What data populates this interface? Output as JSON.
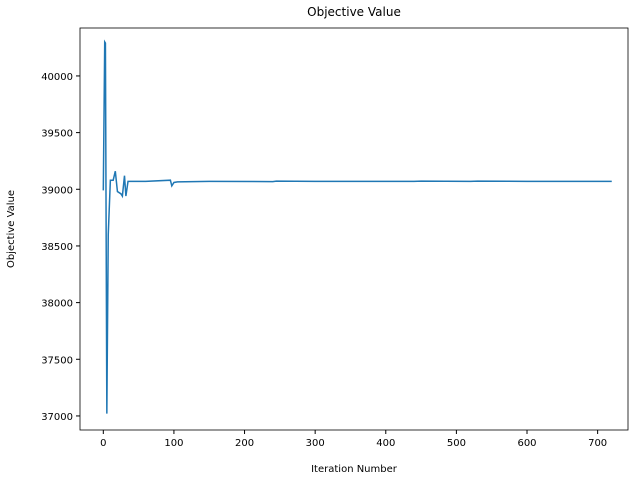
{
  "chart_data": {
    "type": "line",
    "title": "Objective Value",
    "xlabel": "Iteration Number",
    "ylabel": "Objective Value",
    "x": [
      0,
      2,
      3,
      5,
      7,
      10,
      14,
      17,
      20,
      25,
      27,
      30,
      32,
      35,
      40,
      60,
      95,
      97,
      100,
      105,
      150,
      240,
      245,
      300,
      440,
      450,
      520,
      530,
      600,
      720
    ],
    "series": [
      {
        "name": "Objective Value",
        "color": "#1f77b4",
        "values": [
          38990,
          40300,
          40290,
          37020,
          38600,
          39080,
          39080,
          39160,
          38980,
          38960,
          38940,
          39120,
          38940,
          39070,
          39070,
          39070,
          39080,
          39030,
          39060,
          39065,
          39070,
          39068,
          39072,
          39070,
          39070,
          39072,
          39070,
          39072,
          39070,
          39070
        ]
      }
    ],
    "xlim": [
      -33,
      743
    ],
    "ylim": [
      36876,
      40423
    ],
    "xticks": [
      0,
      100,
      200,
      300,
      400,
      500,
      600,
      700
    ],
    "yticks": [
      37000,
      37500,
      38000,
      38500,
      39000,
      39500,
      40000
    ]
  }
}
